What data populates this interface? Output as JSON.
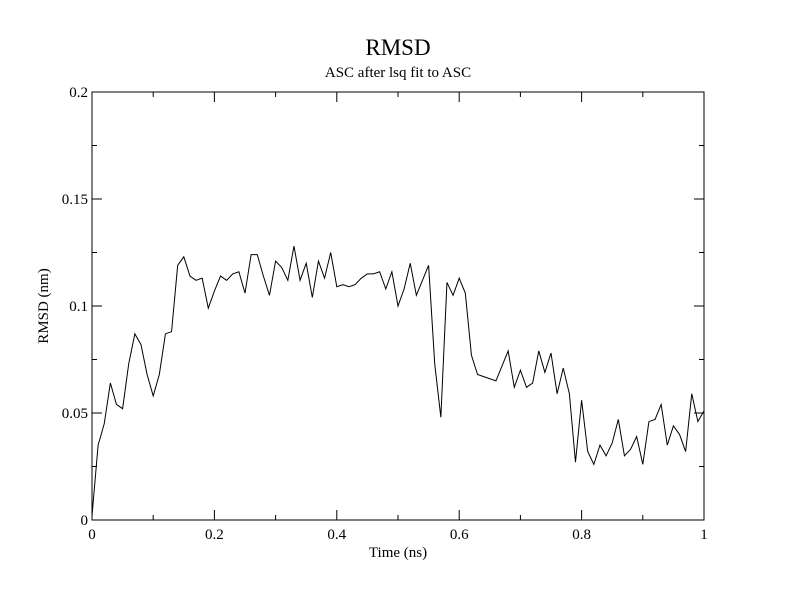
{
  "chart_data": {
    "type": "line",
    "title": "RMSD",
    "subtitle": "ASC after lsq fit to ASC",
    "xlabel": "Time (ns)",
    "ylabel": "RMSD (nm)",
    "xlim": [
      0,
      1
    ],
    "ylim": [
      0,
      0.2
    ],
    "xticks": [
      0,
      0.2,
      0.4,
      0.6,
      0.8,
      1
    ],
    "xtick_labels": [
      "0",
      "0.2",
      "0.4",
      "0.6",
      "0.8",
      "1"
    ],
    "yticks": [
      0,
      0.05,
      0.1,
      0.15,
      0.2
    ],
    "ytick_labels": [
      "0",
      "0.05",
      "0.1",
      "0.15",
      "0.2"
    ],
    "grid": false,
    "legend": "none",
    "line_color": "#000000",
    "series": [
      {
        "x": [
          0,
          0.01,
          0.02,
          0.03,
          0.04,
          0.05,
          0.06,
          0.07,
          0.08,
          0.09,
          0.1,
          0.11,
          0.12,
          0.13,
          0.14,
          0.15,
          0.16,
          0.17,
          0.18,
          0.19,
          0.2,
          0.21,
          0.22,
          0.23,
          0.24,
          0.25,
          0.26,
          0.27,
          0.28,
          0.29,
          0.3,
          0.31,
          0.32,
          0.33,
          0.34,
          0.35,
          0.36,
          0.37,
          0.38,
          0.39,
          0.4,
          0.41,
          0.42,
          0.43,
          0.44,
          0.45,
          0.46,
          0.47,
          0.48,
          0.49,
          0.5,
          0.51,
          0.52,
          0.53,
          0.54,
          0.55,
          0.56,
          0.57,
          0.58,
          0.59,
          0.6,
          0.61,
          0.62,
          0.63,
          0.64,
          0.65,
          0.66,
          0.67,
          0.68,
          0.69,
          0.7,
          0.71,
          0.72,
          0.73,
          0.74,
          0.75,
          0.76,
          0.77,
          0.78,
          0.79,
          0.8,
          0.81,
          0.82,
          0.83,
          0.84,
          0.85,
          0.86,
          0.87,
          0.88,
          0.89,
          0.9,
          0.91,
          0.92,
          0.93,
          0.94,
          0.95,
          0.96,
          0.97,
          0.98,
          0.99,
          1.0
        ],
        "values": [
          0.002,
          0.035,
          0.045,
          0.064,
          0.054,
          0.052,
          0.073,
          0.087,
          0.082,
          0.068,
          0.058,
          0.068,
          0.087,
          0.088,
          0.119,
          0.123,
          0.114,
          0.112,
          0.113,
          0.099,
          0.107,
          0.114,
          0.112,
          0.115,
          0.116,
          0.106,
          0.124,
          0.124,
          0.114,
          0.105,
          0.121,
          0.118,
          0.112,
          0.128,
          0.112,
          0.12,
          0.104,
          0.121,
          0.113,
          0.125,
          0.109,
          0.11,
          0.109,
          0.11,
          0.113,
          0.115,
          0.115,
          0.116,
          0.108,
          0.116,
          0.1,
          0.108,
          0.12,
          0.105,
          0.112,
          0.119,
          0.073,
          0.048,
          0.111,
          0.105,
          0.113,
          0.106,
          0.077,
          0.068,
          0.067,
          0.066,
          0.065,
          0.072,
          0.079,
          0.062,
          0.07,
          0.062,
          0.064,
          0.079,
          0.069,
          0.078,
          0.059,
          0.071,
          0.059,
          0.027,
          0.056,
          0.032,
          0.026,
          0.035,
          0.03,
          0.036,
          0.047,
          0.03,
          0.033,
          0.039,
          0.026,
          0.046,
          0.047,
          0.054,
          0.035,
          0.044,
          0.04,
          0.032,
          0.059,
          0.046,
          0.051
        ]
      }
    ]
  }
}
